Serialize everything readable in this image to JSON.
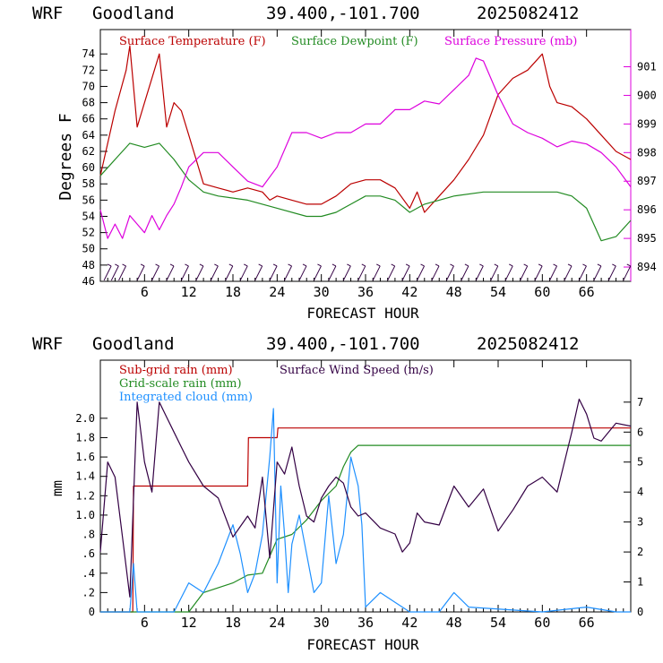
{
  "colors": {
    "temperature": "#bb0000",
    "dewpoint": "#228b22",
    "pressure": "#dd00dd",
    "wind": "#330044",
    "subgrid_rain": "#bb0000",
    "gridscale_rain": "#228b22",
    "cloud": "#1e90ff",
    "axes": "#000000"
  },
  "chart_data": [
    {
      "type": "line",
      "header": {
        "model": "WRF",
        "station": "Goodland",
        "location": "39.400,-101.700",
        "init": "2025082412"
      },
      "xlabel": "FORECAST HOUR",
      "ylabel": "Degrees F",
      "xlim": [
        0,
        72
      ],
      "xticks": [
        6,
        12,
        18,
        24,
        30,
        36,
        42,
        48,
        54,
        60,
        66
      ],
      "ylim": [
        46,
        77
      ],
      "yticks": [
        46,
        48,
        50,
        52,
        54,
        56,
        58,
        60,
        62,
        64,
        66,
        68,
        70,
        72,
        74
      ],
      "y2lim": [
        893.5,
        902.3
      ],
      "y2ticks": [
        894,
        895,
        896,
        897,
        898,
        899,
        900,
        901
      ],
      "legend": [
        "Surface Temperature (F)",
        "Surface Dewpoint (F)",
        "Surface Pressure (mb)"
      ],
      "series": [
        {
          "name": "Surface Temperature (F)",
          "axis": "left",
          "color_key": "temperature",
          "x": [
            0,
            2,
            3.5,
            4,
            5,
            6,
            8,
            9,
            10,
            11,
            12,
            14,
            16,
            18,
            20,
            22,
            23,
            24,
            26,
            28,
            30,
            32,
            34,
            36,
            38,
            40,
            42,
            43,
            44,
            45,
            46,
            48,
            50,
            52,
            54,
            56,
            58,
            59,
            60,
            61,
            62,
            64,
            66,
            68,
            70,
            72
          ],
          "y": [
            59,
            67,
            72,
            75,
            65,
            68,
            74,
            65,
            68,
            67,
            64,
            58,
            57.5,
            57,
            57.5,
            57,
            56,
            56.5,
            56,
            55.5,
            55.5,
            56.5,
            58,
            58.5,
            58.5,
            57.5,
            55,
            57,
            54.5,
            55.5,
            56.5,
            58.5,
            61,
            64,
            69,
            71,
            72,
            73,
            74,
            70,
            68,
            67.5,
            66,
            64,
            62,
            61
          ]
        },
        {
          "name": "Surface Dewpoint (F)",
          "axis": "left",
          "color_key": "dewpoint",
          "x": [
            0,
            2,
            4,
            6,
            8,
            10,
            12,
            14,
            16,
            20,
            24,
            28,
            30,
            32,
            34,
            36,
            38,
            40,
            42,
            44,
            46,
            48,
            52,
            56,
            60,
            62,
            64,
            66,
            68,
            70,
            72
          ],
          "y": [
            59,
            61,
            63,
            62.5,
            63,
            61,
            58.5,
            57,
            56.5,
            56,
            55,
            54,
            54,
            54.5,
            55.5,
            56.5,
            56.5,
            56,
            54.5,
            55.5,
            56,
            56.5,
            57,
            57,
            57,
            57,
            56.5,
            55,
            51,
            51.5,
            53.5
          ]
        },
        {
          "name": "Surface Pressure (mb)",
          "axis": "right",
          "color_key": "pressure",
          "x": [
            0,
            1,
            2,
            3,
            4,
            5,
            6,
            7,
            8,
            9,
            10,
            11,
            12,
            14,
            16,
            18,
            20,
            22,
            24,
            26,
            28,
            30,
            32,
            34,
            36,
            38,
            40,
            42,
            44,
            46,
            48,
            50,
            51,
            52,
            54,
            56,
            58,
            60,
            62,
            64,
            66,
            68,
            70,
            72
          ],
          "y": [
            896,
            895,
            895.5,
            895,
            895.8,
            895.5,
            895.2,
            895.8,
            895.3,
            895.8,
            896.2,
            896.8,
            897.5,
            898,
            898,
            897.5,
            897,
            896.8,
            897.5,
            898.7,
            898.7,
            898.5,
            898.7,
            898.7,
            899,
            899,
            899.5,
            899.5,
            899.8,
            899.7,
            900.2,
            900.7,
            901.3,
            901.2,
            900,
            899,
            898.7,
            898.5,
            898.2,
            898.4,
            898.3,
            898,
            897.5,
            896.8
          ]
        },
        {
          "name": "Wind Barbs",
          "axis": "left",
          "color_key": "wind",
          "x": [
            0.5,
            1.5,
            2.5,
            5,
            7,
            9,
            11,
            13,
            15,
            17,
            19,
            21,
            23,
            25,
            27,
            29,
            31,
            33,
            35,
            37,
            39,
            41,
            43,
            45,
            47,
            49,
            51,
            53,
            55,
            57,
            59,
            61,
            63,
            65,
            67,
            69,
            71
          ],
          "y": [
            47,
            47,
            47,
            47,
            47,
            47,
            47,
            47,
            47,
            47,
            47,
            47,
            47,
            47,
            47,
            47,
            47,
            47,
            47,
            47,
            47,
            47,
            47,
            47,
            47,
            47,
            47,
            47,
            47,
            47,
            47,
            47,
            47,
            47,
            47,
            47,
            47
          ]
        }
      ]
    },
    {
      "type": "line",
      "header": {
        "model": "WRF",
        "station": "Goodland",
        "location": "39.400,-101.700",
        "init": "2025082412"
      },
      "xlabel": "FORECAST HOUR",
      "ylabel": "mm",
      "xlim": [
        0,
        72
      ],
      "xticks": [
        6,
        12,
        18,
        24,
        30,
        36,
        42,
        48,
        54,
        60,
        66
      ],
      "ylim": [
        0,
        2.6
      ],
      "yticks": [
        0,
        0.2,
        0.4,
        0.6,
        0.8,
        1.0,
        1.2,
        1.4,
        1.6,
        1.8,
        2.0
      ],
      "yticklabels": [
        "0",
        ".2",
        ".4",
        ".6",
        ".8",
        "1.0",
        "1.2",
        "1.4",
        "1.6",
        "1.8",
        "2.0"
      ],
      "y2lim": [
        0,
        8.4
      ],
      "y2ticks": [
        0,
        1,
        2,
        3,
        4,
        5,
        6,
        7
      ],
      "legend": [
        "Sub-grid rain (mm)",
        "Grid-scale rain (mm)",
        "Integrated cloud (mm)",
        "Surface Wind Speed (m/s)"
      ],
      "series": [
        {
          "name": "Sub-grid rain (mm)",
          "axis": "left",
          "color_key": "subgrid_rain",
          "x": [
            0,
            4.4,
            4.5,
            20,
            20.1,
            24,
            24.1,
            36,
            72
          ],
          "y": [
            0,
            0,
            1.3,
            1.3,
            1.8,
            1.8,
            1.9,
            1.9,
            1.9
          ]
        },
        {
          "name": "Grid-scale rain (mm)",
          "axis": "left",
          "color_key": "gridscale_rain",
          "x": [
            0,
            12,
            14,
            18,
            20,
            22,
            24,
            26,
            28,
            30,
            32,
            33,
            34,
            35,
            72
          ],
          "y": [
            0,
            0,
            0.2,
            0.3,
            0.38,
            0.4,
            0.75,
            0.8,
            0.95,
            1.15,
            1.3,
            1.5,
            1.65,
            1.72,
            1.72
          ]
        },
        {
          "name": "Integrated cloud (mm)",
          "axis": "left",
          "color_key": "cloud",
          "x": [
            0,
            4,
            4.5,
            5,
            10,
            12,
            14,
            16,
            18,
            19,
            20,
            21,
            22,
            23,
            23.5,
            24,
            24.5,
            25,
            25.5,
            26,
            27,
            28,
            29,
            30,
            31,
            32,
            33,
            34,
            35,
            35.5,
            36,
            38,
            40,
            42,
            46,
            48,
            50,
            60,
            66,
            70,
            72
          ],
          "y": [
            0,
            0,
            0.5,
            0,
            0,
            0.3,
            0.2,
            0.5,
            0.9,
            0.6,
            0.2,
            0.4,
            0.8,
            1.6,
            2.1,
            0.3,
            1.3,
            0.8,
            0.2,
            0.7,
            1.0,
            0.6,
            0.2,
            0.3,
            1.2,
            0.5,
            0.8,
            1.6,
            1.3,
            0.9,
            0.05,
            0.2,
            0.1,
            0,
            0,
            0.2,
            0.05,
            0,
            0.05,
            0,
            0
          ]
        },
        {
          "name": "Surface Wind Speed (m/s)",
          "axis": "right",
          "color_key": "wind",
          "x": [
            0,
            1,
            2,
            3,
            4,
            5,
            6,
            7,
            8,
            9,
            10,
            11,
            12,
            14,
            16,
            18,
            20,
            21,
            22,
            23,
            24,
            25,
            26,
            27,
            28,
            29,
            30,
            31,
            32,
            33,
            34,
            35,
            36,
            38,
            40,
            41,
            42,
            43,
            44,
            46,
            48,
            50,
            52,
            54,
            56,
            58,
            60,
            62,
            64,
            65,
            66,
            67,
            68,
            69,
            70,
            72
          ],
          "y": [
            2,
            5,
            4.5,
            2.5,
            0.5,
            7,
            5,
            4,
            7,
            6.5,
            6,
            5.5,
            5,
            4.2,
            3.8,
            2.5,
            3.2,
            2.8,
            4.5,
            1.8,
            5,
            4.6,
            5.5,
            4.2,
            3.2,
            3,
            3.8,
            4.2,
            4.5,
            4.3,
            3.5,
            3.2,
            3.3,
            2.8,
            2.6,
            2,
            2.3,
            3.3,
            3,
            2.9,
            4.2,
            3.5,
            4.1,
            2.7,
            3.4,
            4.2,
            4.5,
            4,
            6,
            7.1,
            6.6,
            5.8,
            5.7,
            6,
            6.3,
            6.2
          ]
        }
      ]
    }
  ]
}
